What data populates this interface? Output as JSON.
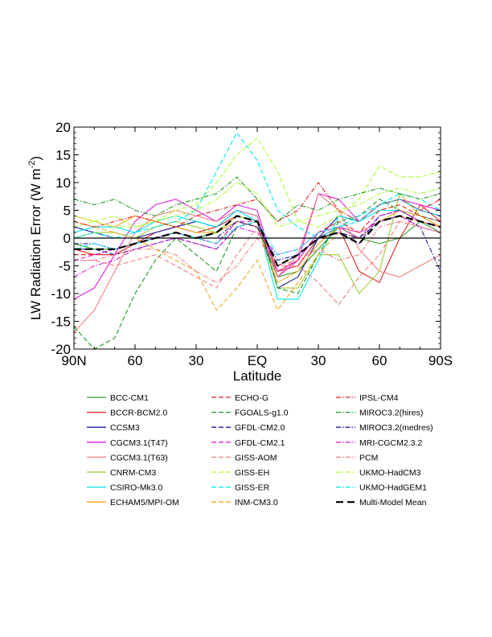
{
  "chart_data": {
    "type": "line",
    "xlabel": "Latitude",
    "ylabel_main": "LW Radiation Error (W m",
    "ylabel_sup": "-2",
    "ylabel_close": ")",
    "xlim": [
      90,
      -90
    ],
    "ylim": [
      -20,
      20
    ],
    "x_ticks": [
      {
        "value": 90,
        "label": "90N"
      },
      {
        "value": 60,
        "label": "60"
      },
      {
        "value": 30,
        "label": "30"
      },
      {
        "value": 0,
        "label": "EQ"
      },
      {
        "value": -30,
        "label": "30"
      },
      {
        "value": -60,
        "label": "60"
      },
      {
        "value": -90,
        "label": "90S"
      }
    ],
    "y_ticks": [
      20,
      15,
      10,
      5,
      0,
      -5,
      -10,
      -15,
      -20
    ],
    "x": [
      90,
      80,
      70,
      60,
      50,
      40,
      30,
      20,
      10,
      0,
      -10,
      -20,
      -30,
      -40,
      -50,
      -60,
      -70,
      -80,
      -90
    ],
    "series": [
      {
        "name": "BCC-CM1",
        "color": "#2ca02c",
        "dash": "solid",
        "values": [
          -1,
          -2,
          -2,
          -1,
          0,
          1,
          0,
          1,
          3,
          2,
          -7,
          -6,
          -2,
          2,
          0,
          -1,
          0,
          3,
          1
        ]
      },
      {
        "name": "BCCR-BCM2.0",
        "color": "#e02020",
        "dash": "solid",
        "values": [
          -2,
          -3,
          -3,
          -1,
          1,
          2,
          1,
          2,
          4,
          3,
          -6,
          -5,
          0,
          2,
          -6,
          -8,
          0,
          6,
          3
        ]
      },
      {
        "name": "CCSM3",
        "color": "#1a1aa0",
        "dash": "solid",
        "values": [
          2,
          1,
          0,
          0,
          1,
          2,
          3,
          2,
          5,
          4,
          -9,
          -7,
          0,
          4,
          3,
          6,
          7,
          5,
          4
        ]
      },
      {
        "name": "CGCM3.1(T47)",
        "color": "#e020e0",
        "dash": "solid",
        "values": [
          -11,
          -9,
          -3,
          3,
          6,
          7,
          5,
          3,
          6,
          5,
          -7,
          -4,
          8,
          7,
          3,
          6,
          7,
          6,
          5
        ]
      },
      {
        "name": "CGCM3.1(T63)",
        "color": "#f08080",
        "dash": "solid",
        "values": [
          -17,
          -13,
          -6,
          1,
          4,
          5,
          4,
          3,
          5,
          4,
          -7,
          -3,
          8,
          5,
          -2,
          -6,
          -7,
          -5,
          -3
        ]
      },
      {
        "name": "CNRM-CM3",
        "color": "#9acd32",
        "dash": "solid",
        "values": [
          0,
          1,
          1,
          0,
          2,
          3,
          2,
          1,
          4,
          3,
          -9,
          -9,
          -3,
          -3,
          -10,
          -6,
          8,
          4,
          2
        ]
      },
      {
        "name": "CSIRO-Mk3.0",
        "color": "#00e5ee",
        "dash": "solid",
        "values": [
          1,
          2,
          2,
          1,
          3,
          4,
          3,
          2,
          5,
          3,
          -11,
          -11,
          -4,
          4,
          3,
          5,
          5,
          4,
          3
        ]
      },
      {
        "name": "ECHAM5/MPI-OM",
        "color": "#f5a623",
        "dash": "solid",
        "values": [
          4,
          3,
          2,
          4,
          3,
          2,
          1,
          1,
          3,
          2,
          -8,
          -6,
          -1,
          2,
          1,
          3,
          5,
          4,
          2
        ]
      },
      {
        "name": "ECHO-G",
        "color": "#e02020",
        "dash": "longdash",
        "values": [
          -3,
          -3,
          -2,
          -1,
          0,
          1,
          0,
          -1,
          3,
          2,
          -6,
          -4,
          1,
          3,
          1,
          5,
          6,
          4,
          3
        ]
      },
      {
        "name": "FGOALS-g1.0",
        "color": "#1f9a1f",
        "dash": "longdash",
        "values": [
          -16,
          -20,
          -18,
          -10,
          -4,
          0,
          -3,
          -6,
          2,
          3,
          -9,
          -10,
          -3,
          3,
          4,
          7,
          5,
          3,
          2
        ]
      },
      {
        "name": "GFDL-CM2.0",
        "color": "#1a1aa0",
        "dash": "longdash",
        "values": [
          -2,
          -2,
          -3,
          -2,
          -1,
          0,
          -1,
          -2,
          2,
          3,
          -5,
          -3,
          0,
          1,
          -1,
          4,
          5,
          3,
          2
        ]
      },
      {
        "name": "GFDL-CM2.1",
        "color": "#e020e0",
        "dash": "longdash",
        "values": [
          -4,
          -3,
          -2,
          -1,
          0,
          1,
          0,
          -1,
          3,
          3,
          -6,
          -4,
          1,
          2,
          0,
          4,
          5,
          3,
          2
        ]
      },
      {
        "name": "GISS-AOM",
        "color": "#f08080",
        "dash": "longdash",
        "values": [
          -4,
          -4,
          -5,
          -4,
          -3,
          -5,
          -7,
          -9,
          -3,
          2,
          -5,
          -5,
          -8,
          -12,
          -7,
          -3,
          3,
          2,
          1
        ]
      },
      {
        "name": "GISS-EH",
        "color": "#adff2f",
        "dash": "longdash",
        "values": [
          2,
          3,
          4,
          2,
          3,
          5,
          6,
          10,
          15,
          18,
          12,
          3,
          2,
          4,
          7,
          13,
          11,
          11,
          12
        ]
      },
      {
        "name": "GISS-ER",
        "color": "#00e5ee",
        "dash": "longdash",
        "values": [
          0,
          1,
          0,
          1,
          2,
          3,
          5,
          12,
          19,
          14,
          5,
          2,
          0,
          2,
          4,
          6,
          8,
          7,
          5
        ]
      },
      {
        "name": "INM-CM3.0",
        "color": "#f5a623",
        "dash": "longdash",
        "values": [
          3,
          2,
          1,
          0,
          -2,
          -4,
          -6,
          -13,
          -9,
          -4,
          -13,
          -8,
          -3,
          1,
          0,
          3,
          4,
          3,
          2
        ]
      },
      {
        "name": "IPSL-CM4",
        "color": "#e02020",
        "dash": "dashdot",
        "values": [
          3,
          2,
          3,
          4,
          3,
          2,
          4,
          5,
          6,
          7,
          3,
          5,
          10,
          5,
          3,
          6,
          7,
          5,
          7
        ]
      },
      {
        "name": "MIROC3.2(hires)",
        "color": "#1f9a1f",
        "dash": "dashdot",
        "values": [
          7,
          6,
          7,
          5,
          4,
          6,
          7,
          8,
          11,
          7,
          3,
          6,
          5,
          7,
          8,
          9,
          8,
          7,
          8
        ]
      },
      {
        "name": "MIROC3.2(medres)",
        "color": "#1a1aa0",
        "dash": "dashdot",
        "values": [
          -1,
          -1,
          -2,
          -1,
          0,
          1,
          0,
          0,
          3,
          2,
          -4,
          -3,
          0,
          1,
          0,
          3,
          4,
          2,
          -6
        ]
      },
      {
        "name": "MRI-CGCM2.3.2",
        "color": "#e020e0",
        "dash": "dashdot",
        "values": [
          -7,
          -5,
          -4,
          -2,
          -1,
          0,
          -1,
          -2,
          2,
          1,
          -3,
          -2,
          1,
          2,
          1,
          3,
          4,
          2,
          1
        ]
      },
      {
        "name": "PCM",
        "color": "#f08080",
        "dash": "dashdot",
        "values": [
          -4,
          -4,
          -3,
          -2,
          -2,
          -3,
          -6,
          -8,
          -5,
          0,
          -5,
          -4,
          -2,
          -4,
          -3,
          2,
          3,
          2,
          1
        ]
      },
      {
        "name": "UKMO-HadCM3",
        "color": "#adff2f",
        "dash": "dashdot",
        "values": [
          4,
          3,
          2,
          2,
          3,
          4,
          5,
          7,
          10,
          8,
          2,
          3,
          4,
          5,
          6,
          8,
          9,
          8,
          9
        ]
      },
      {
        "name": "UKMO-HadGEM1",
        "color": "#00e5ee",
        "dash": "dashdot",
        "values": [
          -2,
          -1,
          -2,
          -1,
          0,
          1,
          0,
          -1,
          2,
          3,
          -3,
          -2,
          1,
          2,
          3,
          6,
          7,
          5,
          4
        ]
      },
      {
        "name": "Multi-Model Mean",
        "color": "#000000",
        "dash": "thickdash",
        "values": [
          -2,
          -2,
          -2,
          -1,
          0,
          1,
          0,
          1,
          4,
          3,
          -5,
          -3,
          0,
          1,
          -1,
          3,
          4,
          3,
          2
        ]
      }
    ]
  }
}
